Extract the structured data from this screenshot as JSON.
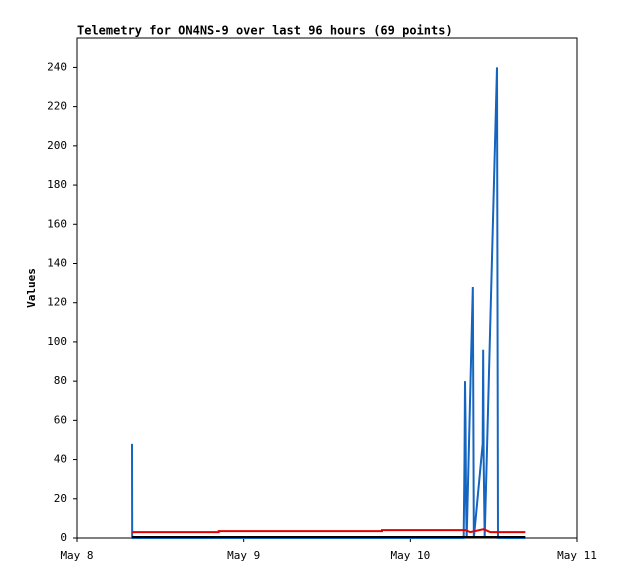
{
  "chart_data": {
    "type": "line",
    "title": "Telemetry for ON4NS-9 over last 96 hours (69 points)",
    "y_label": "Values",
    "xlim": [
      0,
      3
    ],
    "xticks": [
      {
        "value": 0,
        "label": "May 8"
      },
      {
        "value": 1,
        "label": "May 9"
      },
      {
        "value": 2,
        "label": "May 10"
      },
      {
        "value": 3,
        "label": "May 11"
      }
    ],
    "ylim": [
      0,
      255
    ],
    "yticks": [
      0,
      20,
      40,
      60,
      80,
      100,
      120,
      140,
      160,
      180,
      200,
      220,
      240
    ],
    "series": [
      {
        "color": "#1565c0",
        "x": [
          0.33,
          0.331,
          0.335,
          2.32,
          2.325,
          2.328,
          2.331,
          2.334,
          2.338,
          2.375,
          2.378,
          2.381,
          2.434,
          2.437,
          2.44,
          2.446,
          2.52,
          2.523,
          2.526,
          2.69
        ],
        "values": [
          48,
          0,
          0,
          0,
          40,
          80,
          60,
          20,
          0,
          128,
          64,
          0,
          48,
          96,
          40,
          0,
          240,
          120,
          0,
          0
        ]
      },
      {
        "color": "#e00000",
        "x": [
          0.33,
          0.85,
          0.85,
          1.83,
          1.83,
          2.33,
          2.36,
          2.44,
          2.48,
          2.69
        ],
        "values": [
          3,
          3,
          3.5,
          3.5,
          4,
          4,
          3,
          4.5,
          3,
          3
        ]
      },
      {
        "color": "#000000",
        "x": [
          0.33,
          2.69
        ],
        "values": [
          0.5,
          0.5
        ]
      }
    ]
  }
}
